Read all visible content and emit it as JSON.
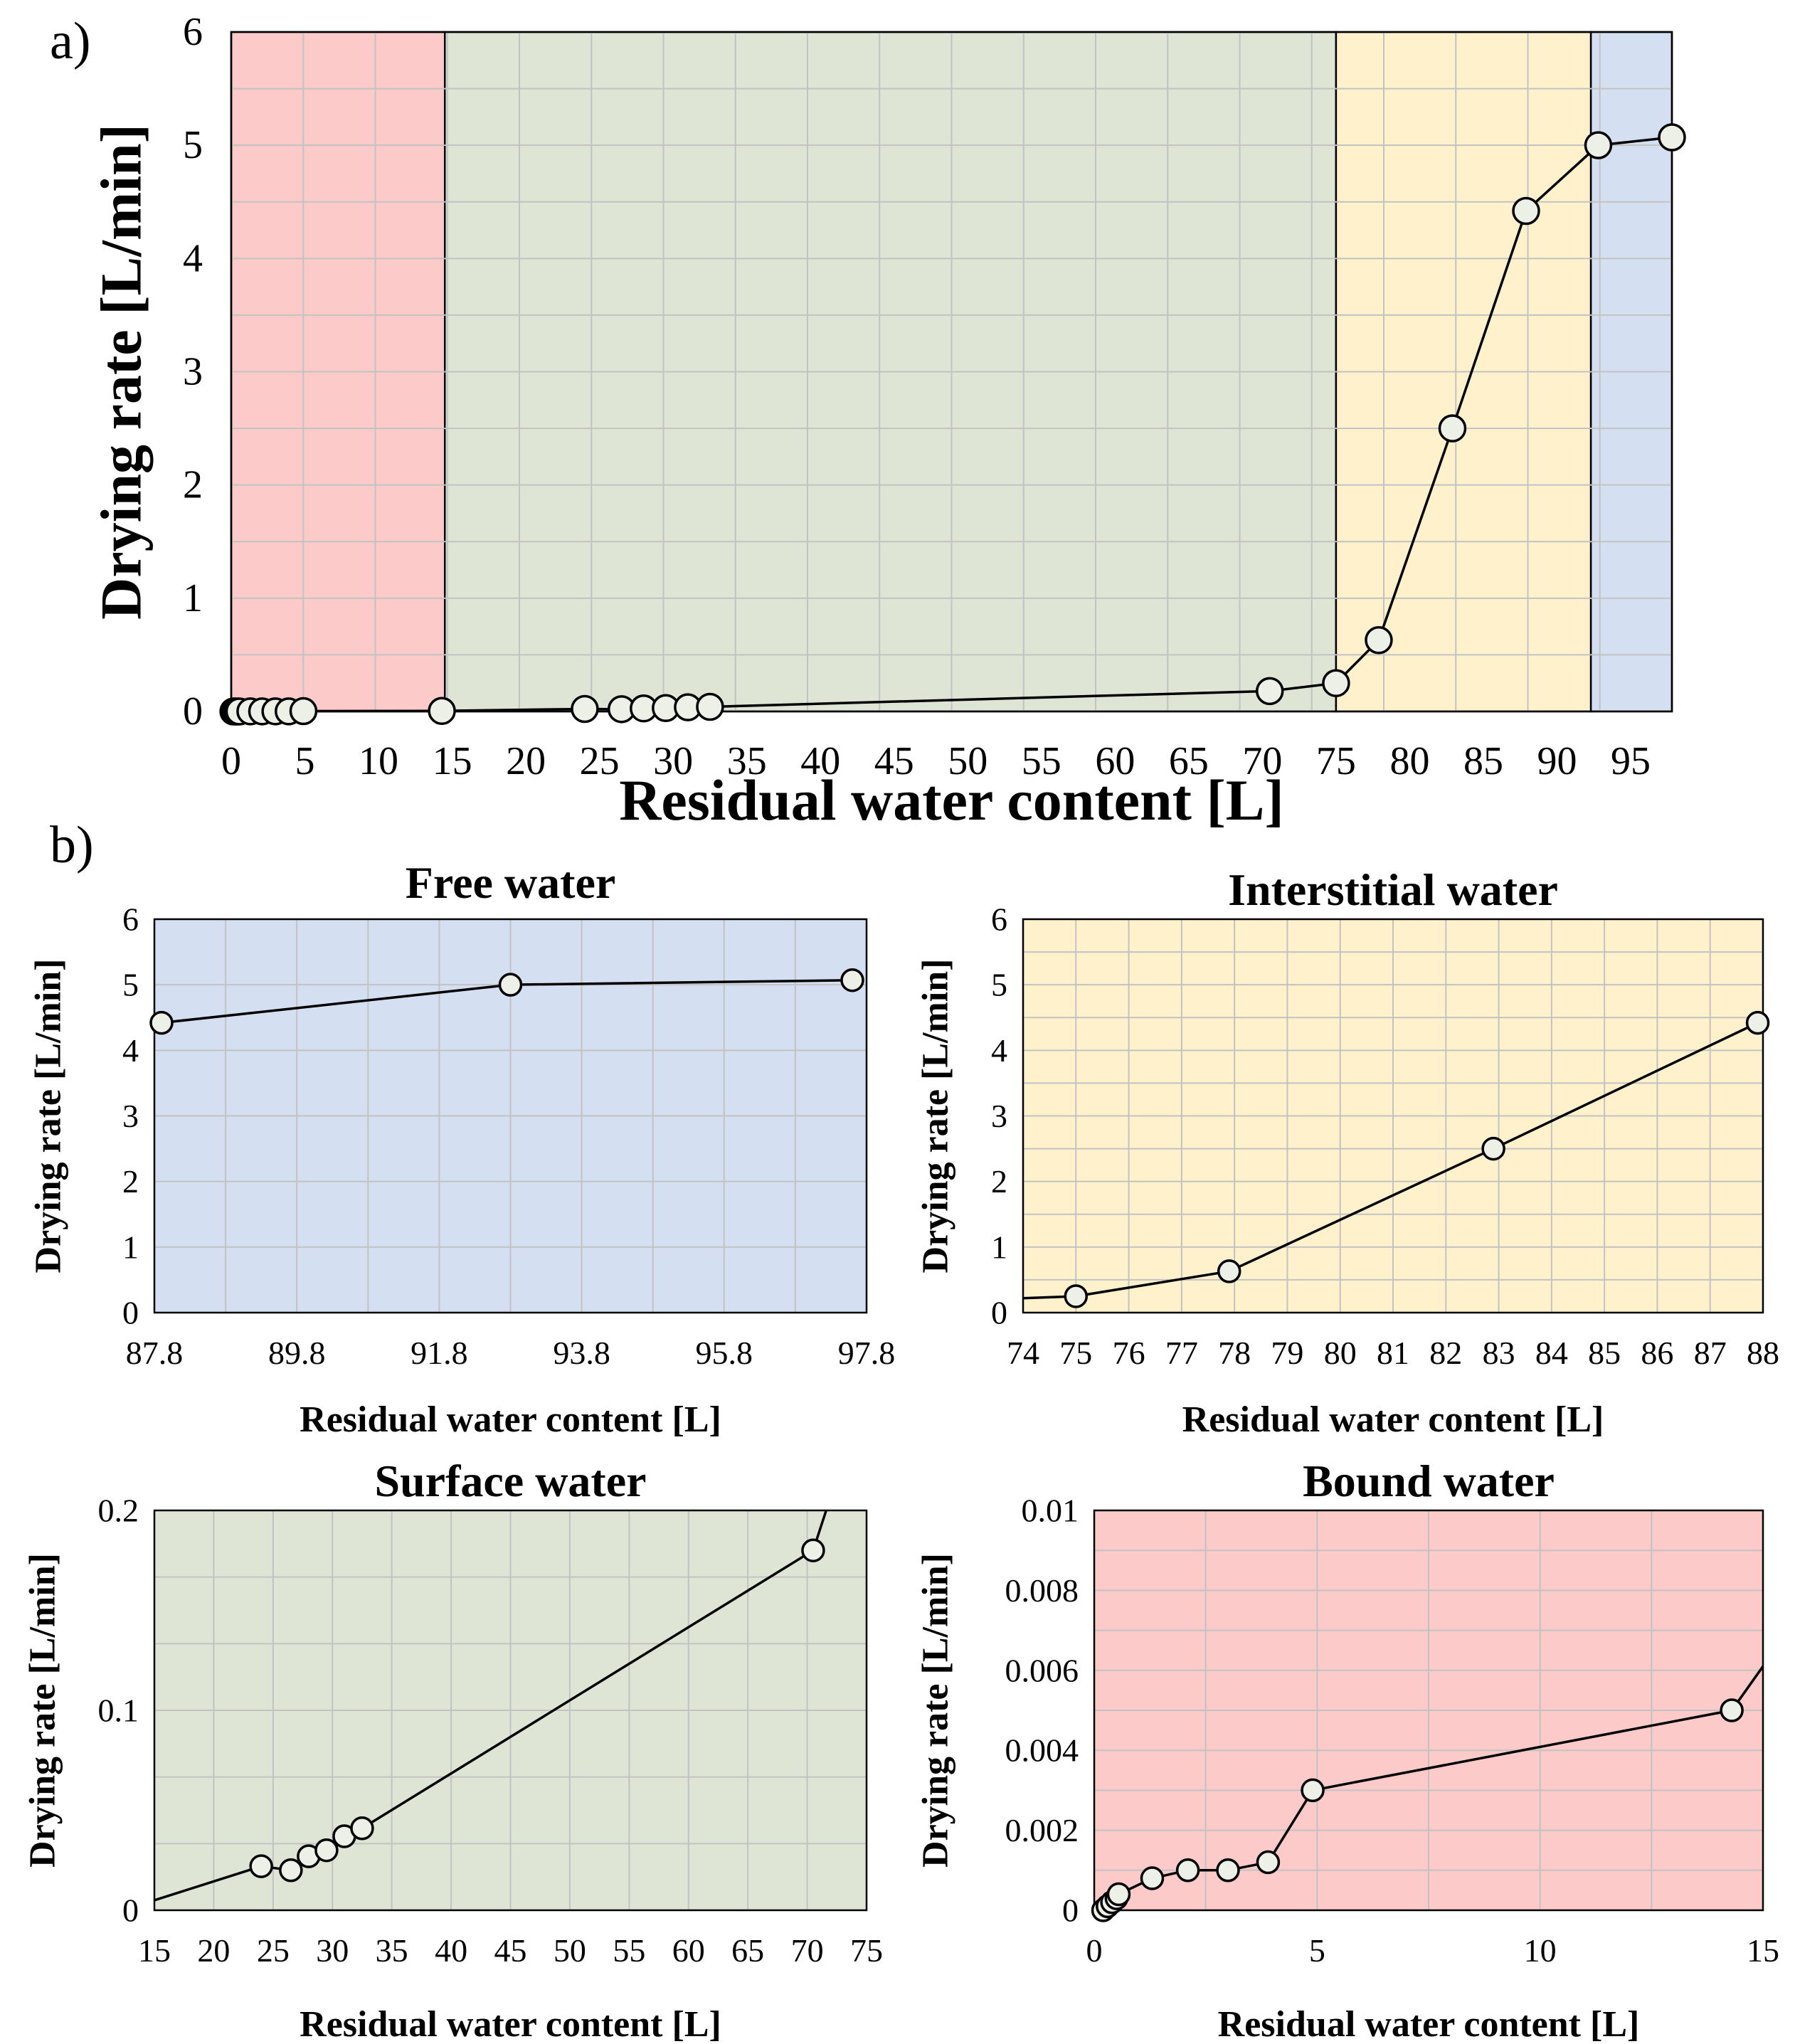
{
  "labels": {
    "panel_a": "a)",
    "panel_b": "b)"
  },
  "colors": {
    "bound": "#fdcaca",
    "surface": "#dfe5d5",
    "interstitial": "#fef1cc",
    "free": "#d5dff2",
    "marker_fill": "#edf0e6"
  },
  "chart_data": [
    {
      "id": "main",
      "type": "line",
      "title": "",
      "xlabel": "Residual water content [L]",
      "ylabel": "Drying rate [L/min]",
      "xlim": [
        0,
        97.8
      ],
      "ylim": [
        0,
        6
      ],
      "xticks": [
        0,
        5,
        10,
        15,
        20,
        25,
        30,
        35,
        40,
        45,
        50,
        55,
        60,
        65,
        70,
        75,
        80,
        85,
        90,
        95
      ],
      "yticks": [
        0,
        1,
        2,
        3,
        4,
        5,
        6
      ],
      "regions": [
        {
          "name": "Bound water",
          "from": 0,
          "to": 14.5,
          "color": "#fdcaca"
        },
        {
          "name": "Surface water",
          "from": 14.5,
          "to": 75,
          "color": "#dfe5d5"
        },
        {
          "name": "Interstitial water",
          "from": 75,
          "to": 92.3,
          "color": "#fef1cc"
        },
        {
          "name": "Free water",
          "from": 92.3,
          "to": 97.8,
          "color": "#d5dff2"
        }
      ],
      "series": [
        {
          "name": "Drying rate",
          "x": [
            0.15,
            0.25,
            0.35,
            0.45,
            0.55,
            1.3,
            2.1,
            3.0,
            3.9,
            4.9,
            14.3,
            24.0,
            26.5,
            28.0,
            29.5,
            31.0,
            32.5,
            70.5,
            75.0,
            77.9,
            82.9,
            87.9,
            92.8,
            97.8
          ],
          "y": [
            0.0,
            0.0,
            0.0,
            0.0,
            0.0,
            0.001,
            0.001,
            0.001,
            0.001,
            0.003,
            0.005,
            0.022,
            0.02,
            0.027,
            0.03,
            0.037,
            0.041,
            0.18,
            0.25,
            0.63,
            2.5,
            4.42,
            5.0,
            5.07
          ]
        }
      ]
    },
    {
      "id": "free",
      "type": "line",
      "title": "Free water",
      "xlabel": "Residual water content [L]",
      "ylabel": "Drying rate [L/min]",
      "xlim": [
        87.8,
        97.8
      ],
      "ylim": [
        0,
        6
      ],
      "xticks": [
        87.8,
        89.8,
        91.8,
        93.8,
        95.8,
        97.8
      ],
      "yticks": [
        0,
        1,
        2,
        3,
        4,
        5,
        6
      ],
      "series": [
        {
          "name": "Drying rate",
          "x": [
            87.9,
            92.8,
            97.6
          ],
          "y": [
            4.42,
            5.0,
            5.07
          ]
        }
      ]
    },
    {
      "id": "interstitial",
      "type": "line",
      "title": "Interstitial water",
      "xlabel": "Residual water content [L]",
      "ylabel": "Drying rate [L/min]",
      "xlim": [
        74,
        88
      ],
      "ylim": [
        0,
        6
      ],
      "xticks": [
        74,
        75,
        76,
        77,
        78,
        79,
        80,
        81,
        82,
        83,
        84,
        85,
        86,
        87,
        88
      ],
      "yticks": [
        0,
        1,
        2,
        3,
        4,
        5,
        6
      ],
      "series": [
        {
          "name": "Drying rate",
          "x": [
            74.0,
            75.0,
            77.9,
            82.9,
            87.9
          ],
          "y": [
            0.22,
            0.25,
            0.63,
            2.5,
            4.42
          ],
          "markers": [
            false,
            true,
            true,
            true,
            true
          ]
        }
      ]
    },
    {
      "id": "surface",
      "type": "line",
      "title": "Surface water",
      "xlabel": "Residual water content [L]",
      "ylabel": "Drying rate [L/min]",
      "xlim": [
        15,
        75
      ],
      "ylim": [
        0,
        0.2
      ],
      "xticks": [
        15,
        20,
        25,
        30,
        35,
        40,
        45,
        50,
        55,
        60,
        65,
        70,
        75
      ],
      "yticks": [
        0,
        0.1,
        0.2
      ],
      "series": [
        {
          "name": "Drying rate",
          "x": [
            15.0,
            24.0,
            26.5,
            28.0,
            29.5,
            31.0,
            32.5,
            70.5,
            71.6
          ],
          "y": [
            0.005,
            0.022,
            0.02,
            0.027,
            0.03,
            0.037,
            0.041,
            0.18,
            0.2
          ],
          "markers": [
            false,
            true,
            true,
            true,
            true,
            true,
            true,
            true,
            false
          ]
        }
      ]
    },
    {
      "id": "bound",
      "type": "line",
      "title": "Bound water",
      "xlabel": "Residual water content [L]",
      "ylabel": "Drying rate [L/min]",
      "xlim": [
        0,
        15
      ],
      "ylim": [
        0,
        0.01
      ],
      "xticks": [
        0,
        5,
        10,
        15
      ],
      "yticks": [
        0,
        0.002,
        0.004,
        0.006,
        0.008,
        0.01
      ],
      "series": [
        {
          "name": "Drying rate",
          "x": [
            0.2,
            0.3,
            0.4,
            0.5,
            0.55,
            1.3,
            2.1,
            3.0,
            3.9,
            4.9,
            14.3,
            15.0
          ],
          "y": [
            0.0,
            0.0001,
            0.0002,
            0.0003,
            0.0004,
            0.0008,
            0.001,
            0.001,
            0.0012,
            0.003,
            0.005,
            0.0061
          ],
          "markers": [
            true,
            true,
            true,
            true,
            true,
            true,
            true,
            true,
            true,
            true,
            true,
            false
          ]
        }
      ]
    }
  ]
}
